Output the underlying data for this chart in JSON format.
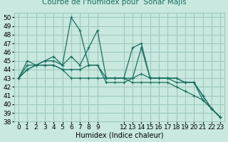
{
  "title": "Courbe de l'humidex pour  Sohar Majis",
  "xlabel": "Humidex (Indice chaleur)",
  "ylabel": "",
  "bg_color": "#c8e8e0",
  "grid_color": "#a0c8c0",
  "line_color": "#1a7060",
  "xlim": [
    -0.5,
    23.5
  ],
  "ylim": [
    38,
    50.5
  ],
  "yticks": [
    38,
    39,
    40,
    41,
    42,
    43,
    44,
    45,
    46,
    47,
    48,
    49,
    50
  ],
  "xticks": [
    0,
    1,
    2,
    3,
    4,
    5,
    6,
    7,
    8,
    9,
    12,
    13,
    14,
    15,
    16,
    17,
    18,
    19,
    20,
    21,
    22,
    23
  ],
  "series": [
    [
      43,
      45,
      44.5,
      45,
      45.5,
      44.5,
      50,
      48.5,
      44.5,
      44.5,
      42.5,
      42.5,
      42.5,
      43,
      46.5,
      43,
      43,
      43,
      43,
      42.5,
      42.5,
      41,
      39.5,
      38.5
    ],
    [
      43,
      44.5,
      44.5,
      45,
      45,
      44.5,
      45.5,
      44.5,
      46.5,
      48.5,
      43,
      43,
      43,
      46.5,
      47,
      43,
      43,
      43,
      43,
      42.5,
      42.5,
      40.5,
      39.5,
      38.5
    ],
    [
      43,
      44,
      44.5,
      44.5,
      44.5,
      44,
      44,
      44,
      44.5,
      44.5,
      43,
      43,
      43,
      43,
      43.5,
      43,
      43,
      43,
      42.5,
      42.5,
      42.5,
      41,
      39.5,
      38.5
    ],
    [
      43,
      44,
      44.5,
      44.5,
      44.5,
      44,
      43,
      43,
      43,
      43,
      43,
      43,
      43,
      42.5,
      42.5,
      42.5,
      42.5,
      42.5,
      42,
      41.5,
      41,
      40.5,
      39.5,
      38.5
    ]
  ],
  "title_fontsize": 7.5,
  "axis_fontsize": 7,
  "tick_fontsize": 6.5
}
